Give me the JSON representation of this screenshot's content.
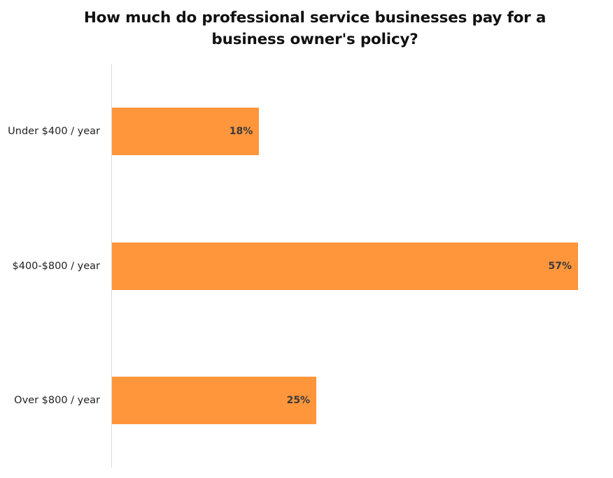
{
  "chart_data": {
    "type": "bar",
    "orientation": "horizontal",
    "title": "How much do professional service businesses pay for a business owner's policy?",
    "title_lines": [
      "How much do professional service businesses pay for a",
      "business owner's policy?"
    ],
    "categories": [
      "Under $400 / year",
      "$400-$800 / year",
      "Over $800 / year"
    ],
    "values": [
      18,
      57,
      25
    ],
    "value_labels": [
      "18%",
      "57%",
      "25%"
    ],
    "unit": "%",
    "xlabel": "",
    "ylabel": "",
    "xlim": [
      0,
      57
    ],
    "grid": false,
    "legend": null,
    "bar_color": "#ff963c"
  }
}
